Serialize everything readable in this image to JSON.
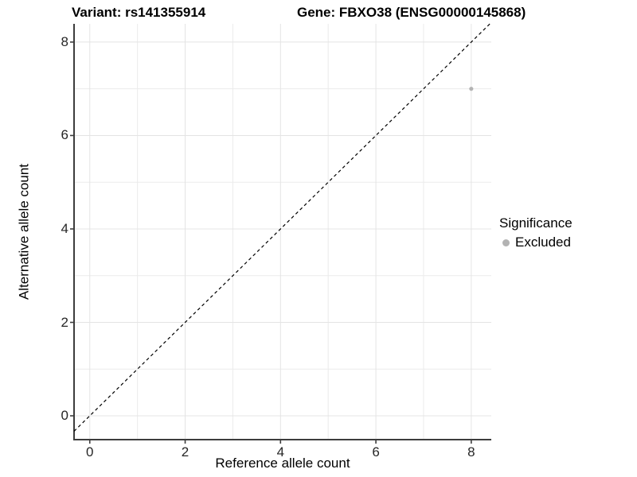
{
  "titles": {
    "left": "Variant: rs141355914",
    "right": "Gene: FBXO38 (ENSG00000145868)"
  },
  "chart_data": {
    "type": "scatter",
    "xlabel": "Reference allele count",
    "ylabel": "Alternative allele count",
    "x_ticks": [
      0,
      2,
      4,
      6,
      8
    ],
    "y_ticks": [
      0,
      2,
      4,
      6,
      8
    ],
    "x_minor": [
      1,
      3,
      5,
      7
    ],
    "y_minor": [
      1,
      3,
      5,
      7
    ],
    "xlim": [
      -0.33,
      8.42
    ],
    "ylim": [
      -0.51,
      8.39
    ],
    "grid": true,
    "identity_line": {
      "type": "dashed",
      "equation": "y = x"
    },
    "points": [
      {
        "x": 8,
        "y": 7,
        "significance": "Excluded"
      }
    ],
    "legend": {
      "title": "Significance",
      "position": "right",
      "items": [
        {
          "label": "Excluded",
          "color": "#b3b3b3"
        }
      ]
    }
  },
  "colors": {
    "background": "#ffffff",
    "grid_major": "#e4e4e4",
    "grid_minor": "#ebebeb",
    "axis_line": "#3d3d3d",
    "tick_text": "#262626",
    "title_text": "#000000",
    "point": "#b3b3b3",
    "identity_line": "#000000"
  }
}
